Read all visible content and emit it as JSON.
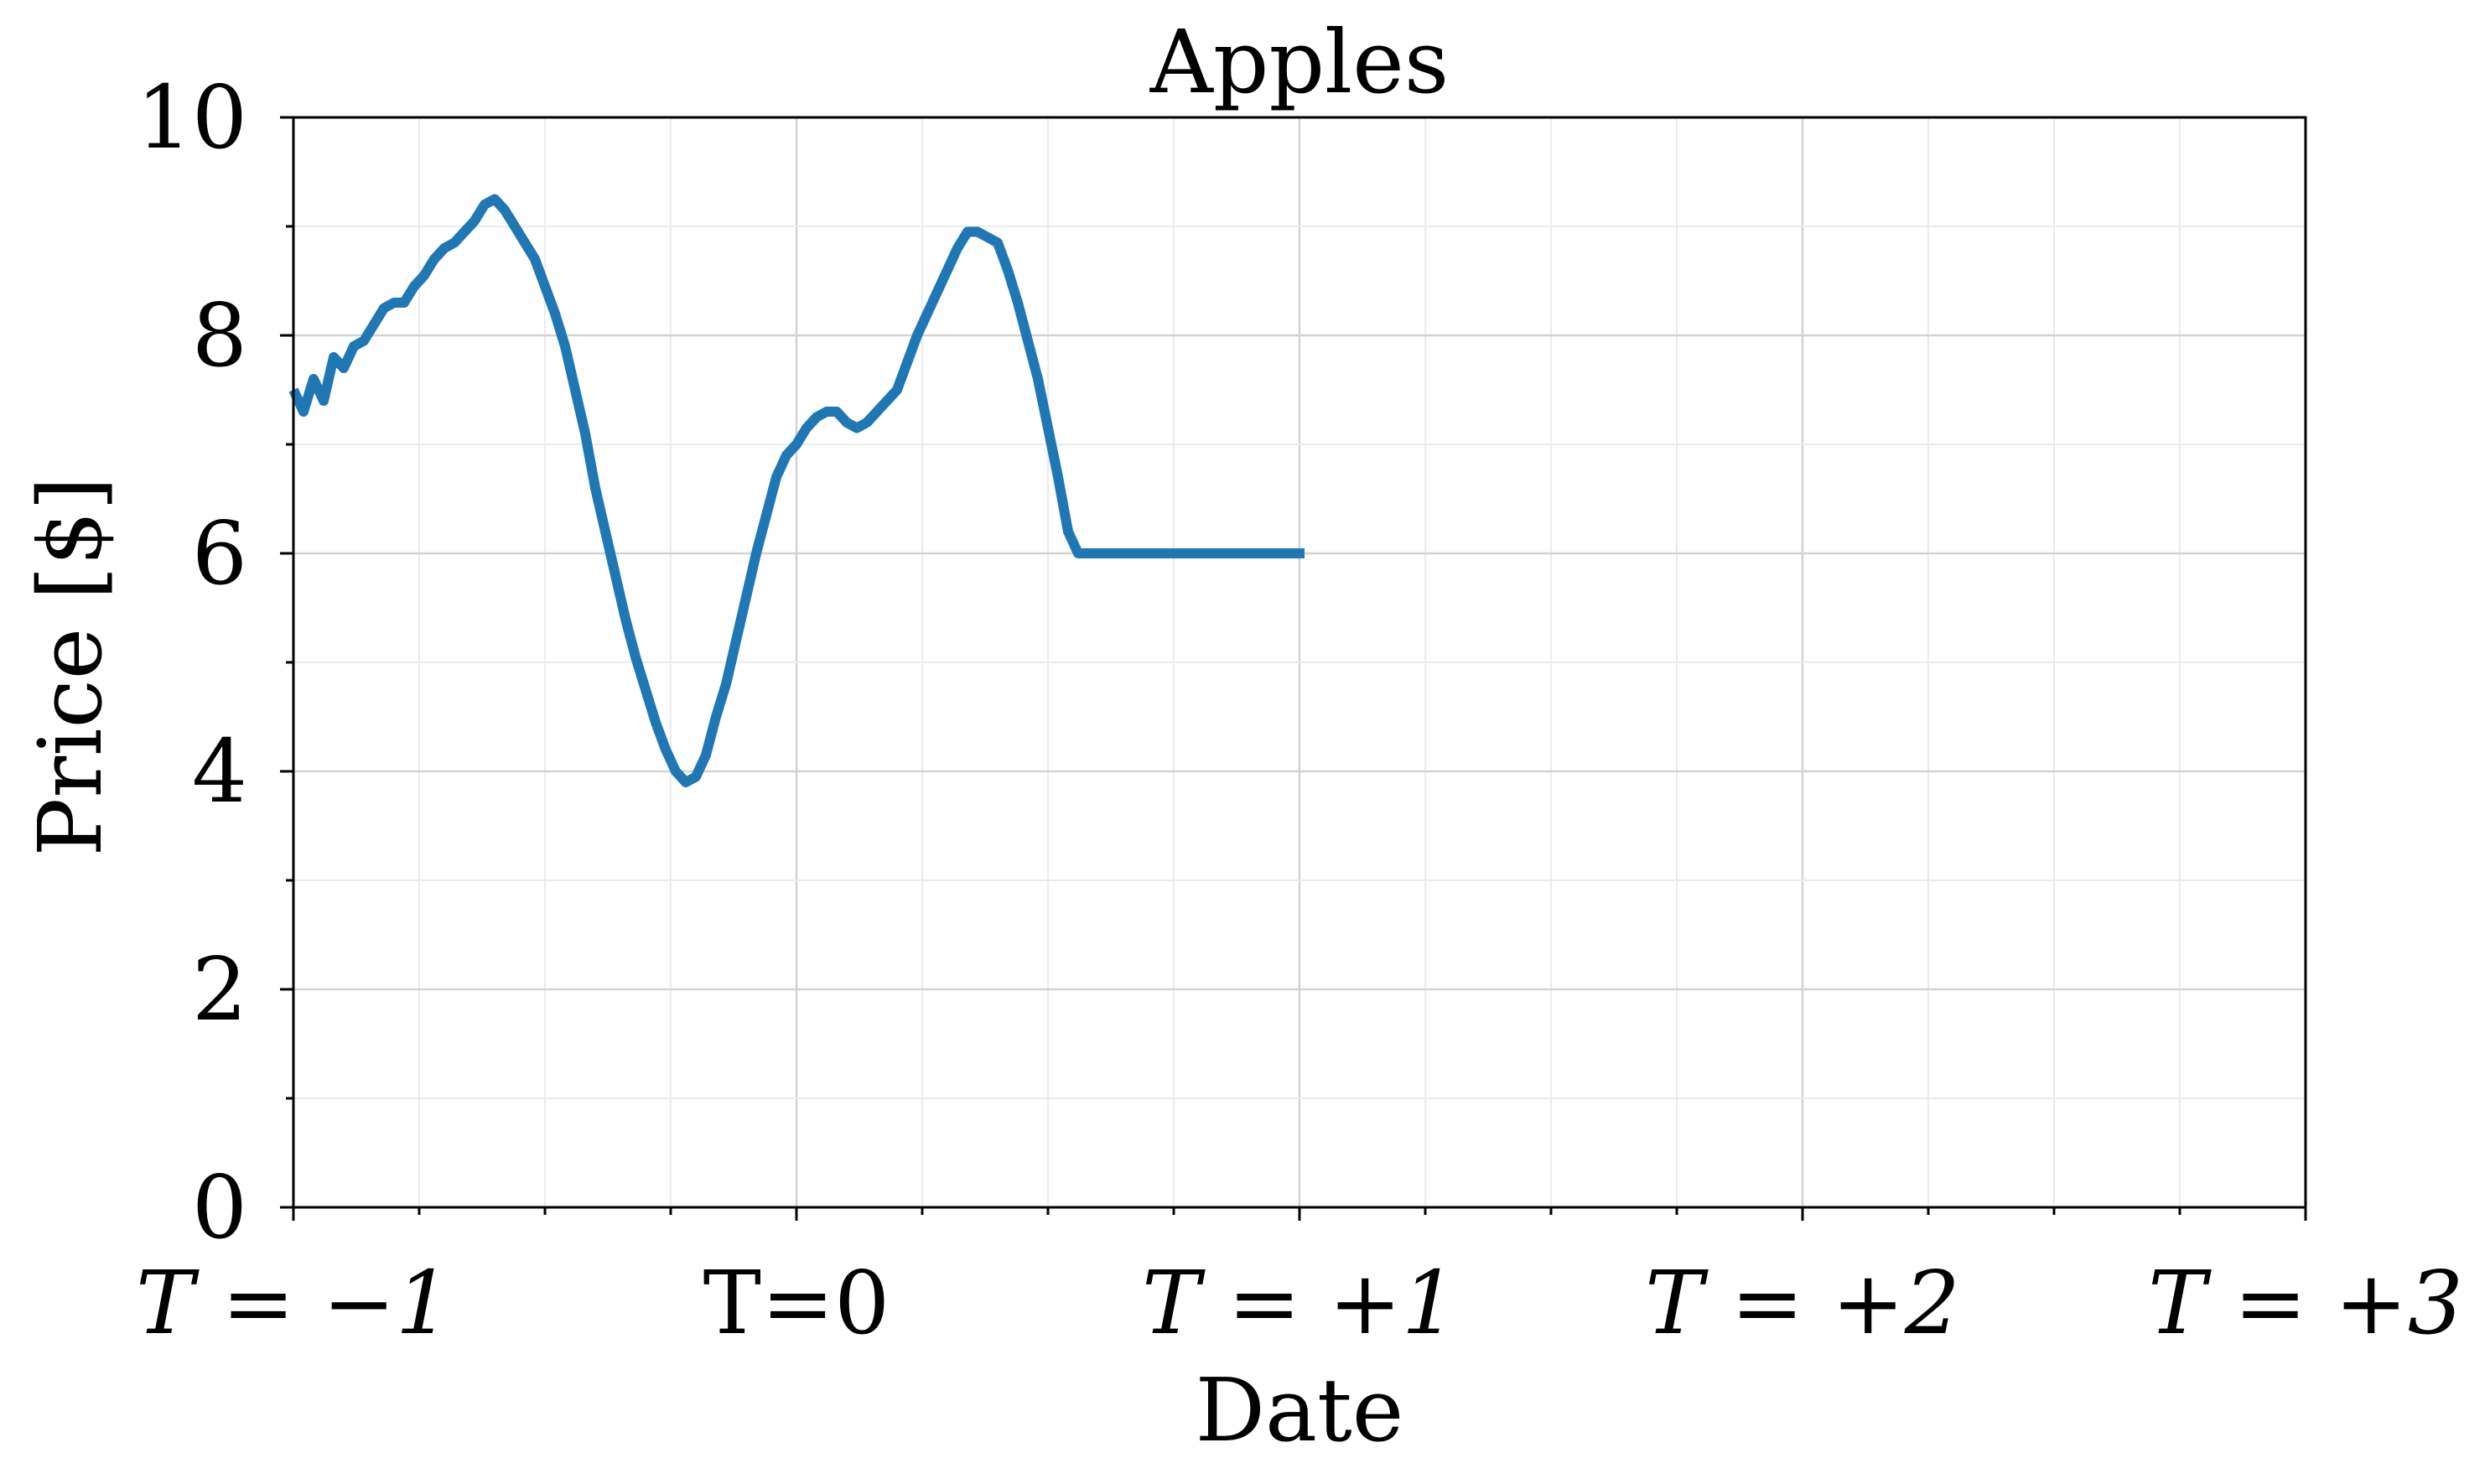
{
  "chart_data": {
    "type": "line",
    "title": "Apples",
    "xlabel": "Date",
    "ylabel": "Price [$]",
    "xlim": [
      -1,
      3
    ],
    "ylim": [
      0,
      10
    ],
    "x_ticks": [
      {
        "value": -1,
        "label": "T = −1",
        "italic": true
      },
      {
        "value": 0,
        "label": "T=0",
        "italic": false
      },
      {
        "value": 1,
        "label": "T = +1",
        "italic": true
      },
      {
        "value": 2,
        "label": "T = +2",
        "italic": true
      },
      {
        "value": 3,
        "label": "T = +3",
        "italic": true
      }
    ],
    "y_ticks": [
      0,
      2,
      4,
      6,
      8,
      10
    ],
    "grid": true,
    "series": [
      {
        "color": "#1f77b4",
        "x": [
          -1.0,
          -0.98,
          -0.96,
          -0.94,
          -0.92,
          -0.9,
          -0.88,
          -0.86,
          -0.84,
          -0.82,
          -0.8,
          -0.78,
          -0.76,
          -0.74,
          -0.72,
          -0.7,
          -0.68,
          -0.66,
          -0.64,
          -0.62,
          -0.6,
          -0.58,
          -0.56,
          -0.54,
          -0.52,
          -0.5,
          -0.48,
          -0.46,
          -0.44,
          -0.42,
          -0.4,
          -0.38,
          -0.36,
          -0.34,
          -0.32,
          -0.3,
          -0.28,
          -0.26,
          -0.24,
          -0.22,
          -0.2,
          -0.18,
          -0.16,
          -0.14,
          -0.12,
          -0.1,
          -0.08,
          -0.06,
          -0.04,
          -0.02,
          0.0,
          0.02,
          0.04,
          0.06,
          0.08,
          0.1,
          0.12,
          0.14,
          0.16,
          0.18,
          0.2,
          0.22,
          0.24,
          0.26,
          0.28,
          0.3,
          0.32,
          0.34,
          0.36,
          0.38,
          0.4,
          0.42,
          0.44,
          0.46,
          0.48,
          0.5,
          0.52,
          0.54,
          0.56,
          0.58,
          0.6,
          0.62,
          0.64,
          0.66,
          0.68,
          0.7,
          0.72,
          0.74,
          0.76,
          0.78,
          0.8,
          0.82,
          0.84,
          0.86,
          0.88,
          0.9,
          0.92,
          0.94,
          0.96,
          0.98,
          1.01
        ],
        "y": [
          7.5,
          7.3,
          7.6,
          7.4,
          7.8,
          7.7,
          7.9,
          7.95,
          8.1,
          8.25,
          8.3,
          8.3,
          8.45,
          8.55,
          8.7,
          8.8,
          8.85,
          8.95,
          9.05,
          9.2,
          9.25,
          9.15,
          9.0,
          8.85,
          8.7,
          8.45,
          8.2,
          7.9,
          7.5,
          7.1,
          6.6,
          6.2,
          5.8,
          5.4,
          5.05,
          4.75,
          4.45,
          4.2,
          4.0,
          3.9,
          3.95,
          4.15,
          4.5,
          4.8,
          5.2,
          5.6,
          6.0,
          6.35,
          6.7,
          6.9,
          7.0,
          7.15,
          7.25,
          7.3,
          7.3,
          7.2,
          7.15,
          7.2,
          7.3,
          7.4,
          7.5,
          7.75,
          8.0,
          8.2,
          8.4,
          8.6,
          8.8,
          8.95,
          8.95,
          8.9,
          8.85,
          8.6,
          8.3,
          7.95,
          7.6,
          7.15,
          6.7,
          6.2,
          6.0,
          6.0,
          6.0,
          6.0,
          6.0,
          6.0,
          6.0,
          6.0,
          6.0,
          6.0,
          6.0,
          6.0,
          6.0,
          6.0,
          6.0,
          6.0,
          6.0,
          6.0,
          6.0,
          6.0,
          6.0,
          6.0,
          6.0
        ]
      }
    ]
  }
}
